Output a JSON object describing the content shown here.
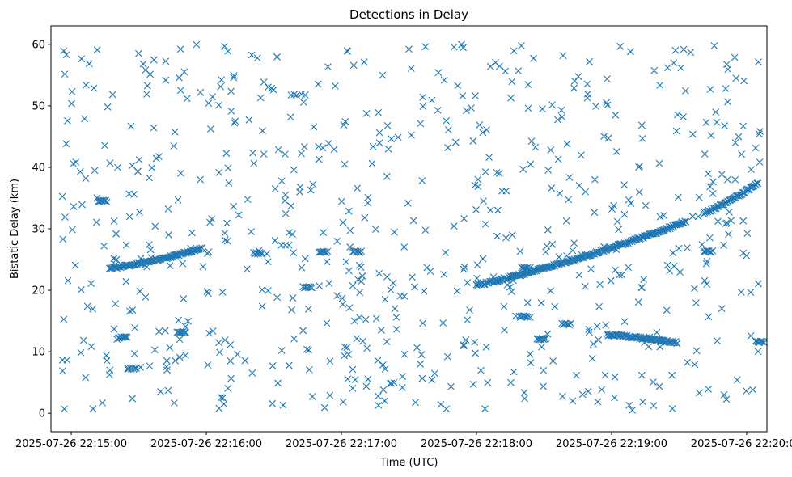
{
  "chart_data": {
    "type": "scatter",
    "title": "Detections in Delay",
    "xlabel": "Time (UTC)",
    "ylabel": "Bistatic Delay (km)",
    "marker": "x",
    "color": "#1f77b4",
    "grid": false,
    "x_ticks": [
      "2025-07-26 22:15:00",
      "2025-07-26 22:16:00",
      "2025-07-26 22:17:00",
      "2025-07-26 22:18:00",
      "2025-07-26 22:19:00",
      "2025-07-26 22:20:00"
    ],
    "y_ticks": [
      0,
      10,
      20,
      30,
      40,
      50,
      60
    ],
    "xlim": [
      "2025-07-26 22:14:51",
      "2025-07-26 22:20:09"
    ],
    "ylim": [
      -3,
      63
    ],
    "tracks": [
      {
        "t_start": "2025-07-26 22:15:17",
        "t_end": "2025-07-26 22:15:58",
        "delay_start": 23.5,
        "delay_end": 26.8
      },
      {
        "t_start": "2025-07-26 22:18:00",
        "t_end": "2025-07-26 22:19:33",
        "delay_start": 20.8,
        "delay_end": 31.2
      },
      {
        "t_start": "2025-07-26 22:19:41",
        "t_end": "2025-07-26 22:20:05",
        "delay_start": 32.5,
        "delay_end": 37.5
      },
      {
        "t_start": "2025-07-26 22:18:58",
        "t_end": "2025-07-26 22:19:29",
        "delay_start": 12.8,
        "delay_end": 11.5
      }
    ],
    "clusters": [
      {
        "t": "2025-07-26 22:15:14",
        "delay": 34.5
      },
      {
        "t": "2025-07-26 22:15:23",
        "delay": 12.3
      },
      {
        "t": "2025-07-26 22:15:27",
        "delay": 7.3
      },
      {
        "t": "2025-07-26 22:15:49",
        "delay": 13.2
      },
      {
        "t": "2025-07-26 22:16:23",
        "delay": 26.0
      },
      {
        "t": "2025-07-26 22:16:45",
        "delay": 20.5
      },
      {
        "t": "2025-07-26 22:16:52",
        "delay": 26.2
      },
      {
        "t": "2025-07-26 22:17:07",
        "delay": 26.3
      },
      {
        "t": "2025-07-26 22:18:22",
        "delay": 23.6
      },
      {
        "t": "2025-07-26 22:18:21",
        "delay": 15.7
      },
      {
        "t": "2025-07-26 22:18:29",
        "delay": 12.1
      },
      {
        "t": "2025-07-26 22:18:40",
        "delay": 14.5
      },
      {
        "t": "2025-07-26 22:19:43",
        "delay": 26.3
      },
      {
        "t": "2025-07-26 22:20:06",
        "delay": 11.6
      }
    ],
    "random_detections": {
      "count": 700,
      "t_range": [
        "2025-07-26 22:14:56",
        "2025-07-26 22:20:06"
      ],
      "delay_range": [
        0.5,
        60
      ]
    }
  }
}
